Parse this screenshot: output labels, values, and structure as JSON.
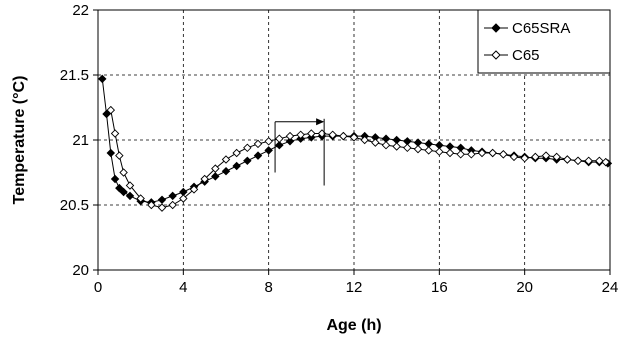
{
  "chart_data": {
    "type": "line",
    "title": "",
    "xlabel": "Age (h)",
    "ylabel": "Temperature (°C)",
    "xlim": [
      0,
      24
    ],
    "ylim": [
      20,
      22
    ],
    "xticks": [
      0,
      4,
      8,
      12,
      16,
      20,
      24
    ],
    "yticks": [
      20,
      20.5,
      21,
      21.5,
      22
    ],
    "grid": "dashed",
    "legend_position": "top-right",
    "series": [
      {
        "name": "C65SRA",
        "marker": "filled-diamond",
        "color": "#000000",
        "points": [
          [
            0.2,
            21.47
          ],
          [
            0.4,
            21.2
          ],
          [
            0.6,
            20.9
          ],
          [
            0.8,
            20.7
          ],
          [
            1.0,
            20.63
          ],
          [
            1.2,
            20.6
          ],
          [
            1.5,
            20.57
          ],
          [
            2.0,
            20.53
          ],
          [
            2.5,
            20.52
          ],
          [
            3.0,
            20.54
          ],
          [
            3.5,
            20.57
          ],
          [
            4.0,
            20.6
          ],
          [
            4.5,
            20.64
          ],
          [
            5.0,
            20.68
          ],
          [
            5.5,
            20.72
          ],
          [
            6.0,
            20.76
          ],
          [
            6.5,
            20.8
          ],
          [
            7.0,
            20.84
          ],
          [
            7.5,
            20.88
          ],
          [
            8.0,
            20.92
          ],
          [
            8.5,
            20.96
          ],
          [
            9.0,
            20.99
          ],
          [
            9.5,
            21.01
          ],
          [
            10.0,
            21.02
          ],
          [
            10.5,
            21.03
          ],
          [
            11.0,
            21.03
          ],
          [
            11.5,
            21.03
          ],
          [
            12.0,
            21.03
          ],
          [
            12.5,
            21.03
          ],
          [
            13.0,
            21.02
          ],
          [
            13.5,
            21.01
          ],
          [
            14.0,
            21.0
          ],
          [
            14.5,
            20.99
          ],
          [
            15.0,
            20.98
          ],
          [
            15.5,
            20.97
          ],
          [
            16.0,
            20.96
          ],
          [
            16.5,
            20.95
          ],
          [
            17.0,
            20.94
          ],
          [
            17.5,
            20.92
          ],
          [
            18.0,
            20.91
          ],
          [
            18.5,
            20.9
          ],
          [
            19.0,
            20.89
          ],
          [
            19.5,
            20.88
          ],
          [
            20.0,
            20.87
          ],
          [
            20.5,
            20.86
          ],
          [
            21.0,
            20.86
          ],
          [
            21.5,
            20.85
          ],
          [
            22.0,
            20.85
          ],
          [
            22.5,
            20.84
          ],
          [
            23.0,
            20.83
          ],
          [
            23.5,
            20.83
          ],
          [
            23.9,
            20.82
          ]
        ]
      },
      {
        "name": "C65",
        "marker": "open-diamond",
        "color": "#000000",
        "points": [
          [
            0.6,
            21.23
          ],
          [
            0.8,
            21.05
          ],
          [
            1.0,
            20.88
          ],
          [
            1.2,
            20.75
          ],
          [
            1.5,
            20.65
          ],
          [
            2.0,
            20.55
          ],
          [
            2.5,
            20.5
          ],
          [
            3.0,
            20.48
          ],
          [
            3.5,
            20.5
          ],
          [
            4.0,
            20.55
          ],
          [
            4.5,
            20.62
          ],
          [
            5.0,
            20.7
          ],
          [
            5.5,
            20.78
          ],
          [
            6.0,
            20.85
          ],
          [
            6.5,
            20.9
          ],
          [
            7.0,
            20.94
          ],
          [
            7.5,
            20.97
          ],
          [
            8.0,
            20.99
          ],
          [
            8.5,
            21.01
          ],
          [
            9.0,
            21.03
          ],
          [
            9.5,
            21.04
          ],
          [
            10.0,
            21.05
          ],
          [
            10.5,
            21.05
          ],
          [
            11.0,
            21.04
          ],
          [
            11.5,
            21.03
          ],
          [
            12.0,
            21.02
          ],
          [
            12.5,
            21.0
          ],
          [
            13.0,
            20.98
          ],
          [
            13.5,
            20.96
          ],
          [
            14.0,
            20.95
          ],
          [
            14.5,
            20.94
          ],
          [
            15.0,
            20.93
          ],
          [
            15.5,
            20.92
          ],
          [
            16.0,
            20.91
          ],
          [
            16.5,
            20.9
          ],
          [
            17.0,
            20.89
          ],
          [
            17.5,
            20.89
          ],
          [
            18.0,
            20.9
          ],
          [
            18.5,
            20.9
          ],
          [
            19.0,
            20.89
          ],
          [
            19.5,
            20.87
          ],
          [
            20.0,
            20.86
          ],
          [
            20.5,
            20.87
          ],
          [
            21.0,
            20.88
          ],
          [
            21.5,
            20.87
          ],
          [
            22.0,
            20.85
          ],
          [
            22.5,
            20.84
          ],
          [
            23.0,
            20.84
          ],
          [
            23.5,
            20.84
          ],
          [
            23.8,
            20.83
          ]
        ]
      }
    ],
    "annotations": [
      {
        "type": "range-bracket",
        "x_start": 8.3,
        "x_end": 10.6,
        "y_top": 21.14,
        "y_bottom_left": 20.75,
        "y_bottom_right": 20.65
      }
    ]
  }
}
